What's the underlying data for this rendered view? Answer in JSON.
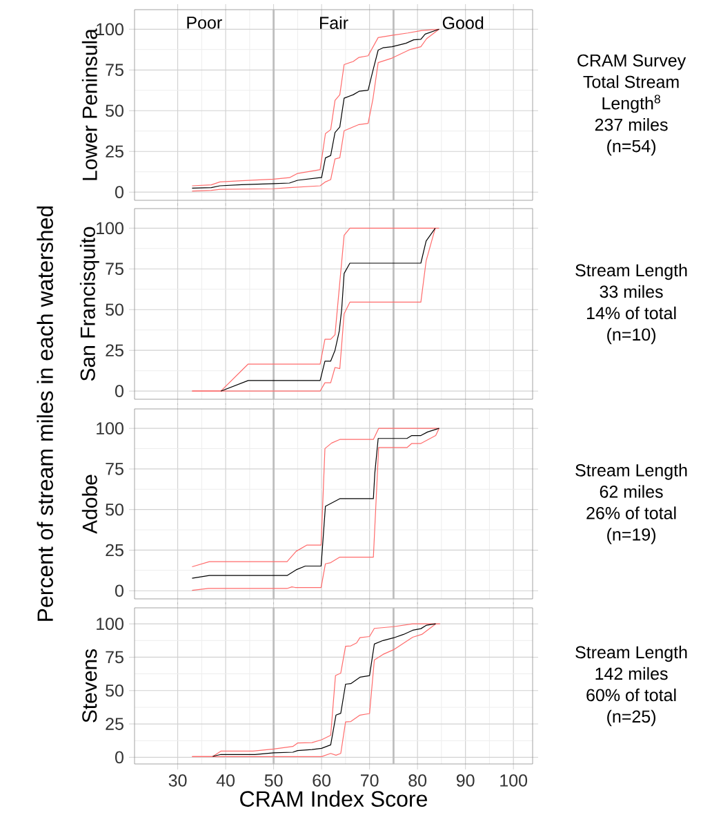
{
  "chart_data": [
    {
      "type": "line",
      "title": "Lower Peninsula",
      "ylabel": "Percent of stream miles in each watershed",
      "xlim": [
        21,
        104
      ],
      "ylim": [
        -5,
        112
      ],
      "xticks": [
        30,
        40,
        50,
        60,
        70,
        80,
        90,
        100
      ],
      "yticks": [
        0,
        25,
        50,
        75,
        100
      ],
      "tick_labels": "y",
      "grid": true,
      "series": [
        {
          "color": "#000000",
          "x": [
            33,
            37,
            38.8,
            43.3,
            50,
            53.3,
            55,
            59.7,
            60,
            60.8,
            61.9,
            62.8,
            63.8,
            64.7,
            66.6,
            67.8,
            69.7,
            70.7,
            71.8,
            72.8,
            74.7,
            77.6,
            79.2,
            80.7,
            81.6,
            84.5
          ],
          "values": [
            2.5,
            2.8,
            3.9,
            4.6,
            5.2,
            5.6,
            7.3,
            8.9,
            8.9,
            21,
            22.5,
            36.6,
            40,
            57.7,
            59.8,
            61.9,
            62.6,
            74.5,
            87.2,
            88.6,
            89.3,
            91.4,
            93.5,
            93.8,
            97,
            100
          ]
        },
        {
          "color": "#ff6b6b",
          "x": [
            33,
            37,
            38.8,
            43.3,
            50,
            53.3,
            55,
            59.7,
            60.8,
            61.9,
            62.8,
            63.8,
            64.7,
            66.6,
            67.8,
            69.7,
            71.8,
            74.7,
            78,
            80.9,
            84.5
          ],
          "values": [
            3.9,
            4.5,
            6.3,
            7,
            8,
            8.9,
            11.5,
            13.8,
            35.9,
            38.4,
            56.3,
            59.8,
            78.3,
            80.2,
            82.7,
            83.7,
            94.9,
            96.3,
            97.7,
            99.2,
            100
          ]
        },
        {
          "color": "#ff6b6b",
          "x": [
            33,
            37,
            38.8,
            50,
            53.3,
            59.7,
            60.8,
            61.9,
            62.8,
            63.8,
            64.7,
            67.8,
            69.7,
            70.7,
            71.8,
            74.7,
            78.5,
            80.7,
            81.9,
            84.5
          ],
          "values": [
            0.7,
            1.1,
            1.7,
            2.1,
            2.8,
            3.9,
            6.3,
            7.7,
            20.4,
            21.1,
            37.7,
            41.5,
            42.2,
            57,
            79.5,
            82.3,
            87.6,
            89.3,
            94.2,
            100
          ]
        }
      ],
      "ref_lines": [
        {
          "axis": "x",
          "value": 50,
          "color": "#bebebe"
        },
        {
          "axis": "x",
          "value": 75,
          "color": "#bebebe"
        }
      ],
      "annotations": [
        "Poor",
        "Fair",
        "Good",
        "CRAM Survey",
        "Total Stream",
        "Length$^{8}$",
        "237 miles",
        "(n=54)"
      ]
    },
    {
      "type": "line",
      "title": "San Francisquito",
      "xlim": [
        21,
        104
      ],
      "ylim": [
        -5,
        112
      ],
      "xticks": [
        30,
        40,
        50,
        60,
        70,
        80,
        90,
        100
      ],
      "yticks": [
        0,
        25,
        50,
        75,
        100
      ],
      "tick_labels": "y",
      "grid": true,
      "series": [
        {
          "color": "#000000",
          "x": [
            39,
            44.7,
            59.7,
            60.7,
            61.9,
            62.8,
            63.7,
            64.2,
            64.7,
            65.9,
            80.7,
            81.8,
            83.7
          ],
          "values": [
            0,
            6.5,
            6.5,
            18.4,
            18.4,
            25,
            37,
            50.4,
            72.2,
            78.5,
            78.5,
            92.1,
            100
          ]
        },
        {
          "color": "#ff6b6b",
          "x": [
            33,
            39,
            44.7,
            59.7,
            60.7,
            61.9,
            62.8,
            64.7,
            65.9,
            84.5
          ],
          "values": [
            0,
            0,
            16.6,
            16.6,
            31.8,
            31.8,
            34.6,
            95.6,
            100,
            100
          ]
        },
        {
          "color": "#ff6b6b",
          "x": [
            33,
            59.7,
            60.7,
            61.9,
            62.8,
            63.8,
            64.7,
            65.9,
            80.7,
            81.8,
            83.7
          ],
          "values": [
            0,
            0,
            5.1,
            5.1,
            14.5,
            13.8,
            47.5,
            54.6,
            54.6,
            79.9,
            100
          ]
        }
      ],
      "ref_lines": [
        {
          "axis": "x",
          "value": 50,
          "color": "#bebebe"
        },
        {
          "axis": "x",
          "value": 75,
          "color": "#bebebe"
        }
      ],
      "annotations": [
        "Stream Length",
        "33 miles",
        "14% of total",
        "(n=10)"
      ]
    },
    {
      "type": "line",
      "title": "Adobe",
      "xlim": [
        21,
        104
      ],
      "ylim": [
        -5,
        112
      ],
      "xticks": [
        30,
        40,
        50,
        60,
        70,
        80,
        90,
        100
      ],
      "yticks": [
        0,
        25,
        50,
        75,
        100
      ],
      "tick_labels": "y",
      "grid": true,
      "series": [
        {
          "color": "#000000",
          "x": [
            33,
            36.6,
            52.8,
            54.7,
            56.6,
            59.9,
            60.2,
            60.8,
            63.8,
            70.8,
            71.1,
            71.8,
            77.8,
            78.8,
            80.7,
            82.1,
            84.5
          ],
          "values": [
            7.7,
            9.4,
            9.4,
            12.9,
            15.2,
            15.2,
            27.4,
            52,
            56.7,
            56.7,
            72.4,
            93.8,
            93.8,
            95.6,
            95.6,
            97.8,
            100
          ]
        },
        {
          "color": "#ff6b6b",
          "x": [
            33,
            36.6,
            52.8,
            54.7,
            56.9,
            59.9,
            60.7,
            62.1,
            63.8,
            70.8,
            71.9,
            84.5
          ],
          "values": [
            14.8,
            17.9,
            17.9,
            24.3,
            28.1,
            28.1,
            87.6,
            91,
            93.2,
            93.2,
            100,
            100
          ]
        },
        {
          "color": "#ff6b6b",
          "x": [
            33,
            36.4,
            52.8,
            53.8,
            54.5,
            59.9,
            60.8,
            61.9,
            63.8,
            70.8,
            71.9,
            77.8,
            78.8,
            80.7,
            83.8,
            84.5
          ],
          "values": [
            0.3,
            1.4,
            1.4,
            2.4,
            2,
            2,
            16.6,
            17.3,
            20.7,
            20.7,
            88.2,
            88.2,
            90.7,
            90.7,
            95.6,
            100
          ]
        }
      ],
      "ref_lines": [
        {
          "axis": "x",
          "value": 50,
          "color": "#bebebe"
        },
        {
          "axis": "x",
          "value": 75,
          "color": "#bebebe"
        }
      ],
      "annotations": [
        "Stream Length",
        "62 miles",
        "26% of total",
        "(n=19)"
      ]
    },
    {
      "type": "line",
      "title": "Stevens",
      "xlabel": "CRAM Index Score",
      "xlim": [
        21,
        104
      ],
      "ylim": [
        -5,
        112
      ],
      "xticks": [
        30,
        40,
        50,
        60,
        70,
        80,
        90,
        100
      ],
      "yticks": [
        0,
        25,
        50,
        75,
        100
      ],
      "grid": true,
      "series": [
        {
          "color": "#000000",
          "x": [
            37.3,
            39,
            46.1,
            50,
            54,
            55,
            58,
            60,
            61.9,
            63,
            64,
            65,
            66.1,
            68,
            70,
            71,
            72.8,
            75,
            77.1,
            79,
            80.7,
            81.9,
            83.8
          ],
          "values": [
            0.7,
            2.1,
            2.1,
            3.3,
            3.8,
            5,
            5.8,
            6.7,
            9.3,
            31.6,
            33,
            54.8,
            55.2,
            60,
            61.2,
            84.9,
            87.5,
            89.5,
            92.1,
            95.2,
            96.4,
            99,
            100
          ]
        },
        {
          "color": "#ff6b6b",
          "x": [
            33,
            37.3,
            39,
            45.7,
            50,
            54,
            55,
            58,
            60,
            61.9,
            62.9,
            64,
            65,
            66.1,
            67.3,
            68,
            70,
            71,
            75,
            79,
            84.7
          ],
          "values": [
            0.5,
            0.5,
            4.6,
            4.6,
            6.2,
            8.1,
            10.7,
            11,
            13.1,
            16.5,
            61.3,
            63.1,
            83.2,
            83.5,
            85.7,
            89.7,
            90.5,
            96.6,
            97.9,
            100,
            100
          ]
        },
        {
          "color": "#ff6b6b",
          "x": [
            33,
            60,
            61.9,
            63,
            64,
            65,
            66.1,
            68,
            70,
            71,
            72.8,
            75,
            79,
            80.9,
            83.8
          ],
          "values": [
            0.5,
            0.5,
            2.9,
            1.5,
            2.9,
            26.5,
            26.8,
            31.6,
            32.8,
            72.9,
            77.1,
            80.6,
            90,
            92.1,
            100
          ]
        }
      ],
      "ref_lines": [
        {
          "axis": "x",
          "value": 50,
          "color": "#bebebe"
        },
        {
          "axis": "x",
          "value": 75,
          "color": "#bebebe"
        }
      ],
      "annotations": [
        "Stream Length",
        "142 miles",
        "60% of total",
        "(n=25)"
      ]
    }
  ]
}
